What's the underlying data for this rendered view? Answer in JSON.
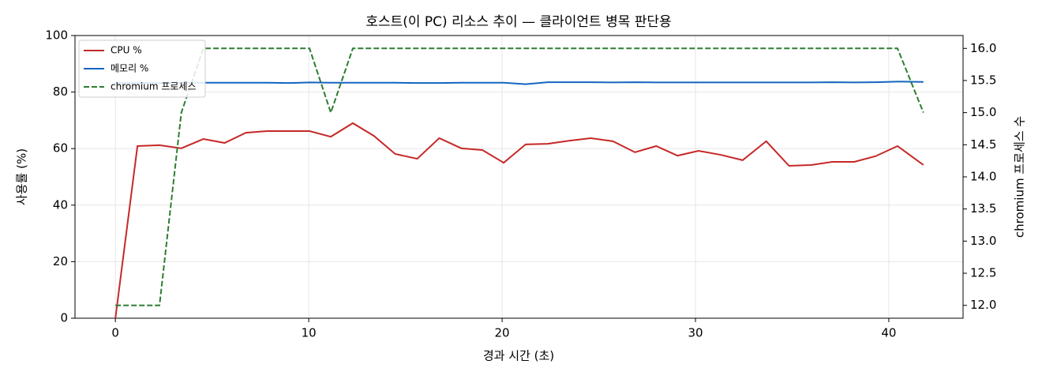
{
  "chart_data": {
    "type": "line",
    "title": "호스트(이 PC) 리소스 추이 — 클라이언트 병목 판단용",
    "x_label": "경과 시간 (초)",
    "y_label": "사용률 (%)",
    "y2_label": "chromium 프로세스 수",
    "x": [
      0,
      1.14,
      2.28,
      3.41,
      4.55,
      5.65,
      6.75,
      7.85,
      8.94,
      10.04,
      11.14,
      12.28,
      13.37,
      14.47,
      15.61,
      16.75,
      17.89,
      18.98,
      20.08,
      21.22,
      22.36,
      23.5,
      24.59,
      25.73,
      26.87,
      27.97,
      29.07,
      30.16,
      31.3,
      32.44,
      33.66,
      34.84,
      35.98,
      37.07,
      38.21,
      39.31,
      40.45,
      41.79
    ],
    "series": [
      {
        "name": "CPU %",
        "color": "#c62828",
        "linestyle": "solid",
        "values": [
          0,
          60.9,
          61.2,
          60.1,
          63.4,
          62,
          65.6,
          66.2,
          66.2,
          66.2,
          64.2,
          69,
          64.5,
          58.1,
          56.4,
          63.7,
          60.1,
          59.5,
          55,
          61.5,
          61.7,
          62.8,
          63.7,
          62.6,
          58.7,
          60.9,
          57.5,
          59.2,
          57.8,
          55.9,
          62.6,
          53.9,
          54.2,
          55.3,
          55.3,
          57.3,
          60.9,
          54.2
        ]
      },
      {
        "name": "메모리 %",
        "color": "#1565c0",
        "linestyle": "solid",
        "values": [
          83.2,
          83.2,
          83.2,
          83.3,
          83.3,
          83.3,
          83.3,
          83.3,
          83.2,
          83.4,
          83.3,
          83.3,
          83.3,
          83.3,
          83.2,
          83.2,
          83.3,
          83.3,
          83.3,
          82.8,
          83.5,
          83.5,
          83.5,
          83.4,
          83.5,
          83.4,
          83.4,
          83.4,
          83.4,
          83.4,
          83.4,
          83.4,
          83.4,
          83.5,
          83.4,
          83.5,
          83.7,
          83.6
        ]
      },
      {
        "name": "chromium 프로세스",
        "color": "#2e7d32",
        "linestyle": "dashed",
        "axis": "y2",
        "values": [
          12,
          12,
          12,
          15,
          16,
          16,
          16,
          16,
          16,
          16,
          15,
          16,
          16,
          16,
          16,
          16,
          16,
          16,
          16,
          16,
          16,
          16,
          16,
          16,
          16,
          16,
          16,
          16,
          16,
          16,
          16,
          16,
          16,
          16,
          16,
          16,
          16,
          15
        ]
      }
    ],
    "xlim": [
      -2.09,
      43.84
    ],
    "xticks": [
      0,
      10,
      20,
      30,
      40
    ],
    "ylim": [
      0,
      100
    ],
    "yticks": [
      0,
      20,
      40,
      60,
      80,
      100
    ],
    "y2lim": [
      11.8,
      16.2
    ],
    "y2ticks": [
      {
        "value": 12,
        "label": "12.0"
      },
      12.5,
      {
        "value": 13,
        "label": "13.0"
      },
      13.5,
      {
        "value": 14,
        "label": "14.0"
      },
      14.5,
      {
        "value": 15,
        "label": "15.0"
      },
      15.5,
      {
        "value": 16,
        "label": "16.0"
      }
    ],
    "grid": true,
    "legend": "upper-left"
  }
}
